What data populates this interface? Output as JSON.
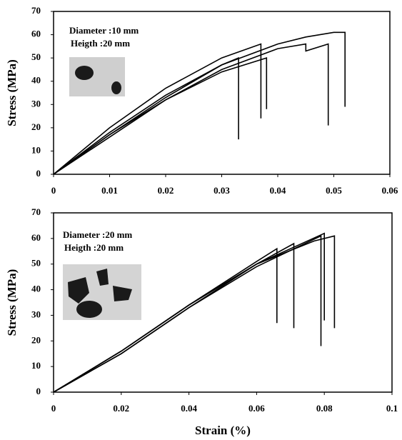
{
  "chart_data": [
    {
      "type": "line",
      "ylabel": "Stress (MPa)",
      "annotations": [
        "Diameter :10 mm",
        "Heigth :20 mm"
      ],
      "xlim": [
        0,
        0.06
      ],
      "xticks": [
        0,
        0.01,
        0.02,
        0.03,
        0.04,
        0.05,
        0.06
      ],
      "ylim": [
        0,
        70
      ],
      "yticks": [
        0,
        10,
        20,
        30,
        40,
        50,
        60,
        70
      ],
      "series": [
        {
          "color": "#000000",
          "x": [
            0,
            0.01,
            0.02,
            0.03,
            0.033,
            0.033
          ],
          "values": [
            0,
            18,
            34,
            47,
            50,
            15
          ]
        },
        {
          "color": "#000000",
          "x": [
            0,
            0.01,
            0.02,
            0.03,
            0.037,
            0.037
          ],
          "values": [
            0,
            20,
            37,
            50,
            56,
            24
          ]
        },
        {
          "color": "#000000",
          "x": [
            0,
            0.01,
            0.02,
            0.03,
            0.038,
            0.038
          ],
          "values": [
            0,
            17,
            32,
            44,
            50,
            28
          ]
        },
        {
          "color": "#000000",
          "x": [
            0,
            0.01,
            0.02,
            0.03,
            0.04,
            0.045,
            0.045,
            0.049,
            0.049
          ],
          "values": [
            0,
            16,
            32,
            45,
            54,
            56,
            53,
            56,
            21
          ]
        },
        {
          "color": "#000000",
          "x": [
            0,
            0.01,
            0.02,
            0.03,
            0.04,
            0.045,
            0.05,
            0.052,
            0.052
          ],
          "values": [
            0,
            17,
            33,
            47,
            56,
            59,
            61,
            61,
            29
          ]
        }
      ]
    },
    {
      "type": "line",
      "ylabel": "Stress (MPa)",
      "xlabel": "Strain (%)",
      "annotations": [
        "Diameter :20 mm",
        "Heigth :20 mm"
      ],
      "xlim": [
        0,
        0.1
      ],
      "xticks": [
        0,
        0.02,
        0.04,
        0.06,
        0.08,
        0.1
      ],
      "ylim": [
        0,
        70
      ],
      "yticks": [
        0,
        10,
        20,
        30,
        40,
        50,
        60,
        70
      ],
      "series": [
        {
          "color": "#000000",
          "x": [
            0,
            0.02,
            0.04,
            0.06,
            0.066,
            0.066
          ],
          "values": [
            0,
            16,
            34,
            51,
            56,
            27
          ]
        },
        {
          "color": "#000000",
          "x": [
            0,
            0.02,
            0.04,
            0.06,
            0.071,
            0.071
          ],
          "values": [
            0,
            16,
            34,
            50,
            58,
            25
          ]
        },
        {
          "color": "#000000",
          "x": [
            0,
            0.02,
            0.04,
            0.06,
            0.079,
            0.079
          ],
          "values": [
            0,
            15,
            33,
            49,
            61,
            18
          ]
        },
        {
          "color": "#000000",
          "x": [
            0,
            0.02,
            0.04,
            0.06,
            0.08,
            0.08
          ],
          "values": [
            0,
            16,
            34,
            50,
            62,
            28
          ]
        },
        {
          "color": "#000000",
          "x": [
            0,
            0.02,
            0.04,
            0.06,
            0.077,
            0.083,
            0.083
          ],
          "values": [
            0,
            15,
            33,
            50,
            59,
            61,
            25
          ]
        }
      ]
    }
  ]
}
